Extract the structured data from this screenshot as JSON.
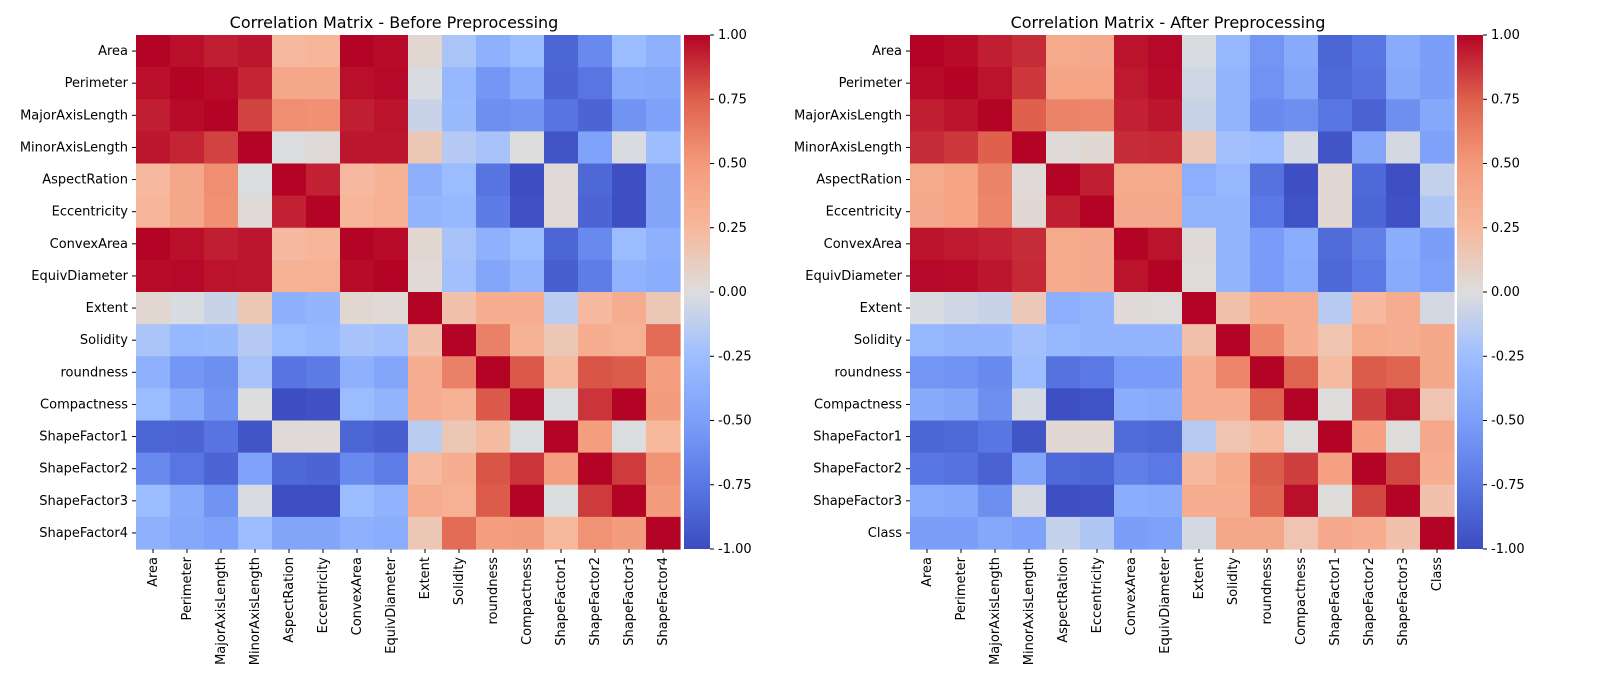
{
  "chart_data": [
    {
      "type": "heatmap",
      "title": "Correlation Matrix - Before Preprocessing",
      "labels": [
        "Area",
        "Perimeter",
        "MajorAxisLength",
        "MinorAxisLength",
        "AspectRation",
        "Eccentricity",
        "ConvexArea",
        "EquivDiameter",
        "Extent",
        "Solidity",
        "roundness",
        "Compactness",
        "ShapeFactor1",
        "ShapeFactor2",
        "ShapeFactor3",
        "ShapeFactor4"
      ],
      "values": [
        [
          1.0,
          0.97,
          0.93,
          0.95,
          0.24,
          0.27,
          1.0,
          0.98,
          0.05,
          -0.2,
          -0.36,
          -0.27,
          -0.85,
          -0.64,
          -0.27,
          -0.36
        ],
        [
          0.97,
          1.0,
          0.98,
          0.91,
          0.39,
          0.39,
          0.97,
          0.99,
          -0.02,
          -0.3,
          -0.55,
          -0.41,
          -0.86,
          -0.76,
          -0.41,
          -0.43
        ],
        [
          0.93,
          0.98,
          1.0,
          0.83,
          0.55,
          0.54,
          0.93,
          0.96,
          -0.08,
          -0.28,
          -0.6,
          -0.57,
          -0.77,
          -0.86,
          -0.57,
          -0.48
        ],
        [
          0.95,
          0.91,
          0.83,
          1.0,
          -0.01,
          0.02,
          0.95,
          0.95,
          0.15,
          -0.16,
          -0.21,
          0.0,
          -0.95,
          -0.47,
          -0.02,
          -0.26
        ],
        [
          0.24,
          0.39,
          0.55,
          -0.01,
          1.0,
          0.92,
          0.24,
          0.3,
          -0.37,
          -0.27,
          -0.77,
          -0.99,
          0.02,
          -0.84,
          -0.98,
          -0.45
        ],
        [
          0.27,
          0.39,
          0.54,
          0.02,
          0.92,
          1.0,
          0.27,
          0.32,
          -0.32,
          -0.3,
          -0.72,
          -0.97,
          0.02,
          -0.86,
          -0.98,
          -0.45
        ],
        [
          1.0,
          0.97,
          0.93,
          0.95,
          0.24,
          0.27,
          1.0,
          0.98,
          0.05,
          -0.21,
          -0.36,
          -0.27,
          -0.85,
          -0.64,
          -0.27,
          -0.36
        ],
        [
          0.98,
          0.99,
          0.96,
          0.95,
          0.3,
          0.32,
          0.98,
          1.0,
          0.03,
          -0.23,
          -0.44,
          -0.33,
          -0.89,
          -0.71,
          -0.34,
          -0.39
        ],
        [
          0.05,
          -0.02,
          -0.08,
          0.15,
          -0.37,
          -0.32,
          0.05,
          0.03,
          1.0,
          0.19,
          0.34,
          0.35,
          -0.14,
          0.24,
          0.35,
          0.15
        ],
        [
          -0.2,
          -0.3,
          -0.28,
          -0.16,
          -0.27,
          -0.3,
          -0.21,
          -0.23,
          0.19,
          1.0,
          0.61,
          0.3,
          0.15,
          0.34,
          0.31,
          0.7
        ],
        [
          -0.36,
          -0.55,
          -0.6,
          -0.21,
          -0.77,
          -0.72,
          -0.36,
          -0.44,
          0.34,
          0.61,
          1.0,
          0.77,
          0.23,
          0.78,
          0.76,
          0.47
        ],
        [
          -0.27,
          -0.41,
          -0.57,
          0.0,
          -0.99,
          -0.97,
          -0.27,
          -0.33,
          0.35,
          0.3,
          0.77,
          1.0,
          -0.01,
          0.87,
          1.0,
          0.48
        ],
        [
          -0.85,
          -0.86,
          -0.77,
          -0.95,
          0.02,
          0.02,
          -0.85,
          -0.89,
          -0.14,
          0.15,
          0.23,
          -0.01,
          1.0,
          0.47,
          -0.01,
          0.25
        ],
        [
          -0.64,
          -0.76,
          -0.86,
          -0.47,
          -0.84,
          -0.86,
          -0.64,
          -0.71,
          0.24,
          0.34,
          0.78,
          0.87,
          0.47,
          1.0,
          0.85,
          0.53
        ],
        [
          -0.27,
          -0.41,
          -0.57,
          -0.02,
          -0.98,
          -0.98,
          -0.27,
          -0.34,
          0.35,
          0.31,
          0.76,
          1.0,
          -0.01,
          0.85,
          1.0,
          0.48
        ],
        [
          -0.36,
          -0.43,
          -0.48,
          -0.26,
          -0.45,
          -0.45,
          -0.36,
          -0.39,
          0.15,
          0.7,
          0.47,
          0.48,
          0.25,
          0.53,
          0.48,
          1.0
        ]
      ],
      "colorbar": {
        "vmin": -1.0,
        "vmax": 1.0,
        "ticks": [
          "-1.00",
          "-0.75",
          "-0.50",
          "-0.25",
          "0.00",
          "0.25",
          "0.50",
          "0.75",
          "1.00"
        ]
      },
      "colormap": "coolwarm"
    },
    {
      "type": "heatmap",
      "title": "Correlation Matrix - After Preprocessing",
      "labels": [
        "Area",
        "Perimeter",
        "MajorAxisLength",
        "MinorAxisLength",
        "AspectRation",
        "Eccentricity",
        "ConvexArea",
        "EquivDiameter",
        "Extent",
        "Solidity",
        "roundness",
        "Compactness",
        "ShapeFactor1",
        "ShapeFactor2",
        "ShapeFactor3",
        "Class"
      ],
      "values": [
        [
          1.0,
          0.98,
          0.93,
          0.89,
          0.37,
          0.38,
          0.96,
          0.99,
          -0.02,
          -0.31,
          -0.56,
          -0.41,
          -0.85,
          -0.75,
          -0.4,
          -0.5
        ],
        [
          0.98,
          1.0,
          0.96,
          0.86,
          0.42,
          0.42,
          0.94,
          0.98,
          -0.05,
          -0.33,
          -0.58,
          -0.44,
          -0.83,
          -0.78,
          -0.43,
          -0.5
        ],
        [
          0.93,
          0.96,
          1.0,
          0.75,
          0.6,
          0.59,
          0.92,
          0.95,
          -0.08,
          -0.32,
          -0.63,
          -0.6,
          -0.75,
          -0.87,
          -0.6,
          -0.43
        ],
        [
          0.89,
          0.86,
          0.75,
          1.0,
          0.02,
          0.04,
          0.89,
          0.9,
          0.14,
          -0.23,
          -0.26,
          -0.03,
          -0.95,
          -0.44,
          -0.04,
          -0.48
        ],
        [
          0.37,
          0.42,
          0.6,
          0.02,
          1.0,
          0.93,
          0.37,
          0.37,
          -0.38,
          -0.3,
          -0.78,
          -0.98,
          0.04,
          -0.83,
          -0.98,
          -0.1
        ],
        [
          0.38,
          0.42,
          0.59,
          0.04,
          0.93,
          1.0,
          0.38,
          0.38,
          -0.33,
          -0.32,
          -0.74,
          -0.96,
          0.04,
          -0.85,
          -0.97,
          -0.18
        ],
        [
          0.96,
          0.94,
          0.92,
          0.89,
          0.37,
          0.38,
          1.0,
          0.96,
          0.02,
          -0.33,
          -0.52,
          -0.39,
          -0.82,
          -0.7,
          -0.39,
          -0.5
        ],
        [
          0.99,
          0.98,
          0.95,
          0.9,
          0.37,
          0.38,
          0.96,
          1.0,
          0.01,
          -0.32,
          -0.52,
          -0.4,
          -0.84,
          -0.74,
          -0.4,
          -0.48
        ],
        [
          -0.02,
          -0.05,
          -0.08,
          0.14,
          -0.38,
          -0.33,
          0.02,
          0.01,
          1.0,
          0.2,
          0.34,
          0.35,
          -0.15,
          0.24,
          0.35,
          -0.04
        ],
        [
          -0.31,
          -0.33,
          -0.32,
          -0.23,
          -0.3,
          -0.32,
          -0.33,
          -0.32,
          0.2,
          1.0,
          0.59,
          0.34,
          0.17,
          0.36,
          0.33,
          0.39
        ],
        [
          -0.56,
          -0.58,
          -0.63,
          -0.26,
          -0.78,
          -0.74,
          -0.52,
          -0.52,
          0.34,
          0.59,
          1.0,
          0.73,
          0.23,
          0.76,
          0.73,
          0.39
        ],
        [
          -0.41,
          -0.44,
          -0.6,
          -0.03,
          -0.98,
          -0.96,
          -0.39,
          -0.4,
          0.35,
          0.34,
          0.73,
          1.0,
          0.01,
          0.84,
          0.97,
          0.17
        ],
        [
          -0.85,
          -0.83,
          -0.75,
          -0.95,
          0.04,
          0.04,
          -0.82,
          -0.84,
          -0.15,
          0.17,
          0.23,
          0.01,
          1.0,
          0.45,
          0.01,
          0.38
        ],
        [
          -0.75,
          -0.78,
          -0.87,
          -0.44,
          -0.83,
          -0.85,
          -0.7,
          -0.74,
          0.24,
          0.36,
          0.76,
          0.84,
          0.45,
          1.0,
          0.82,
          0.34
        ],
        [
          -0.4,
          -0.43,
          -0.6,
          -0.04,
          -0.98,
          -0.97,
          -0.39,
          -0.4,
          0.35,
          0.33,
          0.73,
          0.97,
          0.01,
          0.82,
          1.0,
          0.19
        ],
        [
          -0.5,
          -0.5,
          -0.43,
          -0.48,
          -0.1,
          -0.18,
          -0.5,
          -0.48,
          -0.04,
          0.39,
          0.39,
          0.17,
          0.38,
          0.34,
          0.19,
          1.0
        ]
      ],
      "colorbar": {
        "vmin": -1.0,
        "vmax": 1.0,
        "ticks": [
          "-1.00",
          "-0.75",
          "-0.50",
          "-0.25",
          "0.00",
          "0.25",
          "0.50",
          "0.75",
          "1.00"
        ]
      },
      "colormap": "coolwarm"
    }
  ]
}
